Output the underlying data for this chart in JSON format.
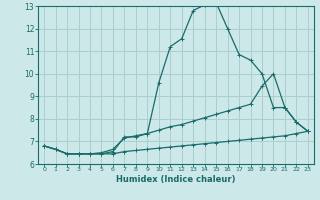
{
  "xlabel": "Humidex (Indice chaleur)",
  "bg_color": "#cce8e8",
  "grid_color": "#aacece",
  "line_color": "#1a6b6b",
  "xlim": [
    -0.5,
    23.5
  ],
  "ylim": [
    6,
    13
  ],
  "xticks": [
    0,
    1,
    2,
    3,
    4,
    5,
    6,
    7,
    8,
    9,
    10,
    11,
    12,
    13,
    14,
    15,
    16,
    17,
    18,
    19,
    20,
    21,
    22,
    23
  ],
  "yticks": [
    6,
    7,
    8,
    9,
    10,
    11,
    12,
    13
  ],
  "line1_x": [
    0,
    1,
    2,
    3,
    4,
    5,
    6,
    7,
    8,
    9,
    10,
    11,
    12,
    13,
    14,
    15,
    16,
    17,
    18,
    19,
    20,
    21,
    22,
    23
  ],
  "line1_y": [
    6.8,
    6.65,
    6.45,
    6.45,
    6.45,
    6.45,
    6.55,
    7.2,
    7.2,
    7.35,
    9.6,
    11.2,
    11.55,
    12.8,
    13.05,
    13.15,
    12.0,
    10.85,
    10.6,
    10.0,
    8.5,
    8.5,
    7.85,
    7.45
  ],
  "line2_x": [
    0,
    1,
    2,
    3,
    4,
    5,
    6,
    7,
    8,
    9,
    10,
    11,
    12,
    13,
    14,
    15,
    16,
    17,
    18,
    19,
    20,
    21,
    22,
    23
  ],
  "line2_y": [
    6.8,
    6.65,
    6.45,
    6.45,
    6.45,
    6.5,
    6.65,
    7.15,
    7.25,
    7.35,
    7.5,
    7.65,
    7.75,
    7.9,
    8.05,
    8.2,
    8.35,
    8.5,
    8.65,
    9.45,
    10.0,
    8.5,
    7.85,
    7.45
  ],
  "line3_x": [
    0,
    1,
    2,
    3,
    4,
    5,
    6,
    7,
    8,
    9,
    10,
    11,
    12,
    13,
    14,
    15,
    16,
    17,
    18,
    19,
    20,
    21,
    22,
    23
  ],
  "line3_y": [
    6.8,
    6.65,
    6.45,
    6.45,
    6.45,
    6.45,
    6.45,
    6.55,
    6.6,
    6.65,
    6.7,
    6.75,
    6.8,
    6.85,
    6.9,
    6.95,
    7.0,
    7.05,
    7.1,
    7.15,
    7.2,
    7.25,
    7.35,
    7.45
  ]
}
